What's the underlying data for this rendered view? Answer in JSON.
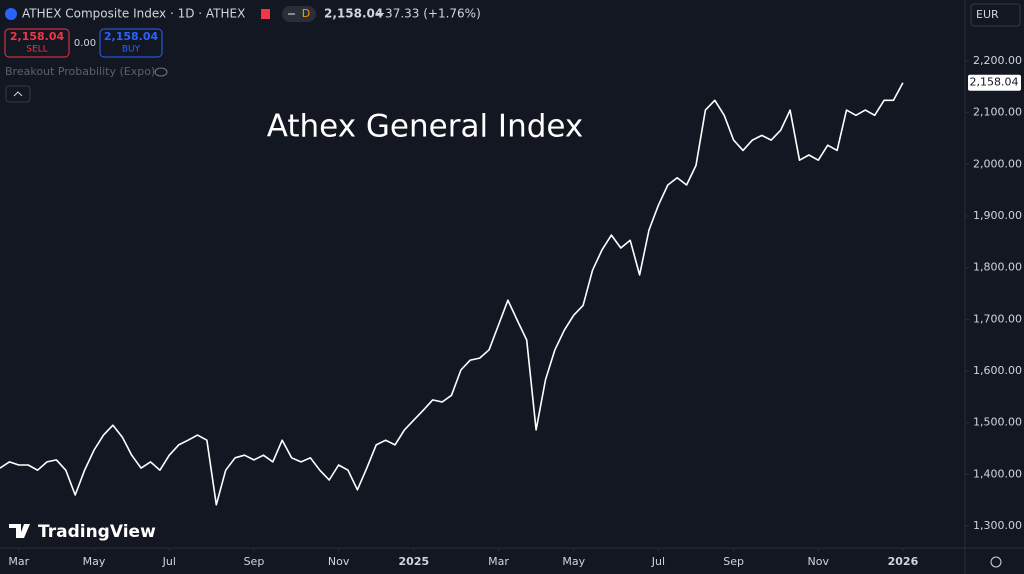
{
  "chart_data": {
    "type": "line",
    "title": "Athex General Index",
    "series": [
      {
        "name": "ATHEX Composite Index",
        "color": "#ffffff",
        "values": [
          1412,
          1424,
          1418,
          1418,
          1408,
          1424,
          1428,
          1408,
          1360,
          1408,
          1447,
          1476,
          1495,
          1472,
          1437,
          1412,
          1424,
          1408,
          1437,
          1457,
          1466,
          1476,
          1466,
          1341,
          1408,
          1432,
          1437,
          1428,
          1437,
          1424,
          1466,
          1432,
          1424,
          1432,
          1408,
          1389,
          1418,
          1408,
          1370,
          1412,
          1457,
          1466,
          1457,
          1486,
          1505,
          1524,
          1544,
          1540,
          1553,
          1602,
          1621,
          1625,
          1641,
          1689,
          1737,
          1698,
          1660,
          1486,
          1583,
          1641,
          1679,
          1708,
          1727,
          1795,
          1834,
          1863,
          1838,
          1853,
          1786,
          1873,
          1921,
          1960,
          1974,
          1960,
          1998,
          2105,
          2124,
          2095,
          2047,
          2027,
          2047,
          2056,
          2047,
          2066,
          2105,
          2008,
          2018,
          2008,
          2037,
          2027,
          2105,
          2095,
          2105,
          2095,
          2124,
          2124,
          2158
        ]
      }
    ],
    "xlim": [
      0,
      102.6
    ],
    "xticks": [
      {
        "value": 2,
        "label": "Mar"
      },
      {
        "value": 10,
        "label": "May"
      },
      {
        "value": 18,
        "label": "Jul"
      },
      {
        "value": 27,
        "label": "Sep"
      },
      {
        "value": 36,
        "label": "Nov"
      },
      {
        "value": 44,
        "label": "2025"
      },
      {
        "value": 53,
        "label": "Mar"
      },
      {
        "value": 61,
        "label": "May"
      },
      {
        "value": 70,
        "label": "Jul"
      },
      {
        "value": 78,
        "label": "Sep"
      },
      {
        "value": 87,
        "label": "Nov"
      },
      {
        "value": 96,
        "label": "2026"
      }
    ],
    "ylim": [
      1257.4,
      2318.1
    ],
    "yticks": [
      {
        "value": 1300,
        "label": "1,300.00"
      },
      {
        "value": 1400,
        "label": "1,400.00"
      },
      {
        "value": 1500,
        "label": "1,500.00"
      },
      {
        "value": 1600,
        "label": "1,600.00"
      },
      {
        "value": 1700,
        "label": "1,700.00"
      },
      {
        "value": 1800,
        "label": "1,800.00"
      },
      {
        "value": 1900,
        "label": "1,900.00"
      },
      {
        "value": 2000,
        "label": "2,000.00"
      },
      {
        "value": 2100,
        "label": "2,100.00"
      },
      {
        "value": 2200,
        "label": "2,200.00"
      }
    ],
    "last_price_label": "2,158.04",
    "grid": false
  },
  "header": {
    "symbol": "ATHEX Composite Index · 1D · ATHEX",
    "badge": "D",
    "price": "2,158.04",
    "change": "+37.33 (+1.76%)",
    "sell_price": "2,158.04",
    "sell": "SELL",
    "spread": "0.00",
    "buy_price": "2,158.04",
    "buy": "BUY",
    "indicator": "Breakout Probability (Expo)",
    "currency": "EUR",
    "brand": "TradingView"
  }
}
